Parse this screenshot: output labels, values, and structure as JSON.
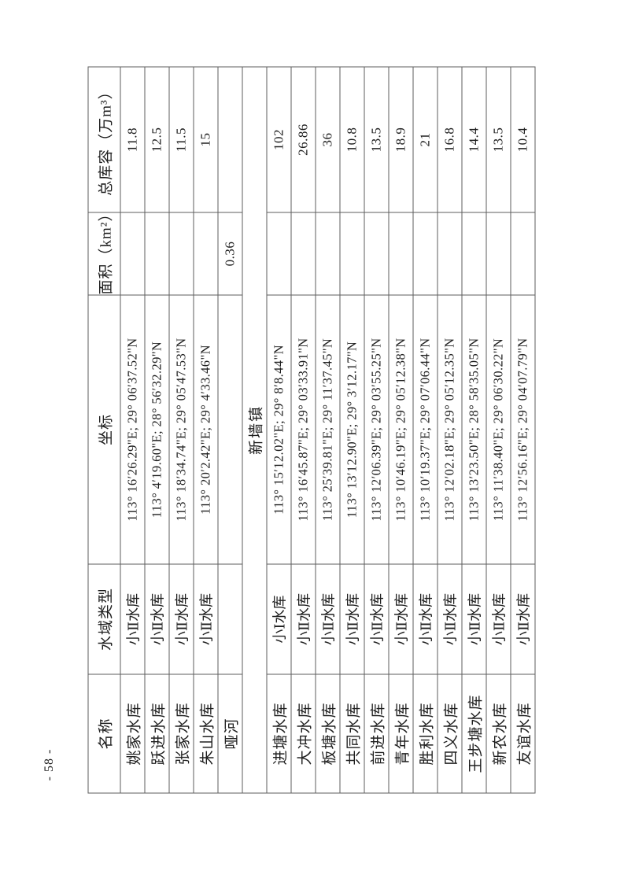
{
  "page": {
    "page_number": "- 58 -"
  },
  "table": {
    "headers": [
      "名称",
      "水域类型",
      "坐标",
      "面积（km²）",
      "总库容（万m³）"
    ],
    "rows": [
      {
        "name": "姚家水库",
        "type": "小Ⅱ水库",
        "coord": "113° 16′26.29\"E; 29° 06′37.52\"N",
        "area": "",
        "capacity": "11.8"
      },
      {
        "name": "跃进水库",
        "type": "小Ⅱ水库",
        "coord": "113° 4′19.60\"E; 28° 56′32.29\"N",
        "area": "",
        "capacity": "12.5"
      },
      {
        "name": "张家水库",
        "type": "小Ⅱ水库",
        "coord": "113° 18′34.74\"E; 29° 05′47.53\"N",
        "area": "",
        "capacity": "11.5"
      },
      {
        "name": "朱山水库",
        "type": "小Ⅱ水库",
        "coord": "113° 20′2.42\"E; 29° 4′33.46\"N",
        "area": "",
        "capacity": "15"
      },
      {
        "name": "哑河",
        "type": "",
        "coord": "",
        "area": "0.36",
        "capacity": ""
      },
      {
        "section": "新墙镇"
      },
      {
        "name": "进塘水库",
        "type": "小Ⅰ水库",
        "coord": "113° 15′12.02\"E; 29° 8′8.44\"N",
        "area": "",
        "capacity": "102"
      },
      {
        "name": "大冲水库",
        "type": "小Ⅱ水库",
        "coord": "113° 16′45.87\"E; 29° 03′33.91\"N",
        "area": "",
        "capacity": "26.86"
      },
      {
        "name": "板塘水库",
        "type": "小Ⅱ水库",
        "coord": "113° 25′39.81\"E; 29° 11′37.45\"N",
        "area": "",
        "capacity": "36"
      },
      {
        "name": "共同水库",
        "type": "小Ⅱ水库",
        "coord": "113° 13′12.90\"E; 29° 3′12.17\"N",
        "area": "",
        "capacity": "10.8"
      },
      {
        "name": "前进水库",
        "type": "小Ⅱ水库",
        "coord": "113° 12′06.39\"E; 29° 03′55.25\"N",
        "area": "",
        "capacity": "13.5"
      },
      {
        "name": "青年水库",
        "type": "小Ⅱ水库",
        "coord": "113° 10′46.19\"E; 29° 05′12.38\"N",
        "area": "",
        "capacity": "18.9"
      },
      {
        "name": "胜利水库",
        "type": "小Ⅱ水库",
        "coord": "113° 10′19.37\"E; 29° 07′06.44\"N",
        "area": "",
        "capacity": "21"
      },
      {
        "name": "四义水库",
        "type": "小Ⅱ水库",
        "coord": "113° 12′02.18\"E; 29° 05′12.35\"N",
        "area": "",
        "capacity": "16.8"
      },
      {
        "name": "王步塘水库",
        "type": "小Ⅱ水库",
        "coord": "113° 13′23.50\"E; 28° 58′35.05\"N",
        "area": "",
        "capacity": "14.4"
      },
      {
        "name": "新农水库",
        "type": "小Ⅱ水库",
        "coord": "113° 11′38.40\"E; 29° 06′30.22\"N",
        "area": "",
        "capacity": "13.5"
      },
      {
        "name": "友谊水库",
        "type": "小Ⅱ水库",
        "coord": "113° 12′56.16\"E; 29° 04′07.79\"N",
        "area": "",
        "capacity": "10.4"
      }
    ]
  }
}
